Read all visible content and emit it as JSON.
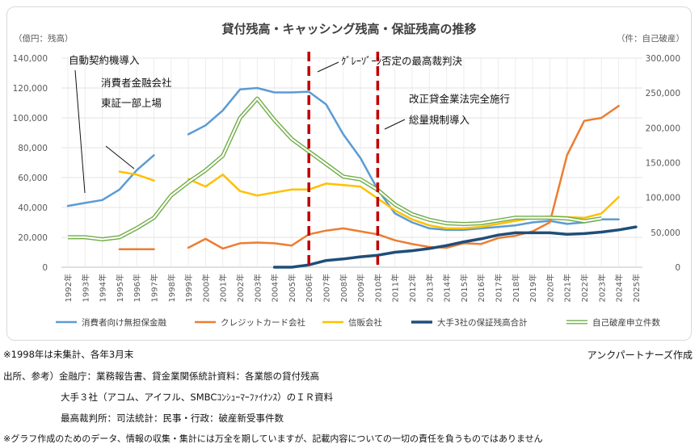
{
  "chart_data": {
    "type": "line",
    "title": "貸付残高・キャッシング残高・保証残高の推移",
    "left_unit": "（億円：残高）",
    "right_unit": "（件：自己破産）",
    "x": [
      "1992年",
      "1993年",
      "1994年",
      "1995年",
      "1996年",
      "1997年",
      "1998年",
      "1999年",
      "2000年",
      "2001年",
      "2002年",
      "2003年",
      "2004年",
      "2005年",
      "2006年",
      "2007年",
      "2008年",
      "2009年",
      "2010年",
      "2011年",
      "2012年",
      "2013年",
      "2014年",
      "2015年",
      "2016年",
      "2017年",
      "2018年",
      "2019年",
      "2020年",
      "2021年",
      "2022年",
      "2023年",
      "2024年",
      "2025年"
    ],
    "left_axis": {
      "min": 0,
      "max": 140000,
      "ticks": [
        "0",
        "20,000",
        "40,000",
        "60,000",
        "80,000",
        "100,000",
        "120,000",
        "140,000"
      ]
    },
    "right_axis": {
      "min": 0,
      "max": 300000,
      "ticks": [
        "0",
        "50,000",
        "100,000",
        "150,000",
        "200,000",
        "250,000",
        "300,000"
      ]
    },
    "grid": true,
    "legend_position": "bottom",
    "series": [
      {
        "name": "消費者向け無担保金融",
        "color": "#5b9bd5",
        "axis": "left",
        "style": "solid",
        "values": [
          41000,
          43000,
          45000,
          52000,
          65000,
          75000,
          null,
          89000,
          95000,
          105000,
          119000,
          120000,
          117000,
          117000,
          117500,
          109000,
          89000,
          73000,
          52000,
          36000,
          30000,
          26000,
          25000,
          25000,
          26000,
          27000,
          28000,
          30000,
          31000,
          29000,
          30000,
          32000,
          32000,
          null
        ]
      },
      {
        "name": "クレジットカード会社",
        "color": "#ed7d31",
        "axis": "left",
        "style": "solid",
        "values": [
          null,
          null,
          null,
          12000,
          12000,
          12000,
          null,
          13000,
          19000,
          12500,
          16000,
          16500,
          16000,
          14500,
          22000,
          24500,
          26000,
          24000,
          22000,
          18000,
          15500,
          13500,
          13000,
          16000,
          15500,
          19500,
          21000,
          24000,
          30000,
          75000,
          98000,
          100000,
          108000,
          null
        ]
      },
      {
        "name": "信販会社",
        "color": "#ffc000",
        "axis": "left",
        "style": "solid",
        "values": [
          null,
          null,
          null,
          64000,
          62000,
          58000,
          null,
          59000,
          54000,
          62000,
          51000,
          48000,
          50000,
          52000,
          52000,
          56000,
          55000,
          54000,
          46000,
          38000,
          32000,
          28000,
          26000,
          26000,
          27000,
          29000,
          31000,
          33000,
          34000,
          33500,
          33000,
          36000,
          47000,
          null
        ]
      },
      {
        "name": "大手3社の保証残高合計",
        "color": "#1f4e79",
        "axis": "left",
        "style": "solid",
        "values": [
          null,
          null,
          null,
          null,
          null,
          null,
          null,
          null,
          null,
          null,
          null,
          null,
          0,
          0,
          1500,
          4500,
          5500,
          7000,
          8000,
          10000,
          11000,
          12500,
          14500,
          17000,
          19000,
          21500,
          23000,
          23000,
          23000,
          22000,
          22500,
          23500,
          25000,
          27000
        ]
      },
      {
        "name": "自己破産申立件数",
        "color": "#70ad47",
        "axis": "right",
        "style": "double",
        "values": [
          43000,
          43000,
          40000,
          43000,
          56000,
          71000,
          103000,
          122000,
          139000,
          160000,
          214000,
          242000,
          211000,
          184000,
          166000,
          148000,
          130000,
          126000,
          111000,
          90000,
          76000,
          68000,
          63000,
          62000,
          63000,
          67000,
          71000,
          71000,
          71000,
          70000,
          66000,
          70000,
          null,
          null
        ]
      }
    ],
    "annotations": [
      {
        "text": "自動契約機導入"
      },
      {
        "text": "消費者金融会社"
      },
      {
        "text": "東証一部上場"
      },
      {
        "text": "ｸﾞﾚｰｿﾞｰﾝ否定の最高裁判決"
      },
      {
        "text": "改正貸金業法完全施行"
      },
      {
        "text": "総量規制導入"
      }
    ]
  },
  "notes": {
    "note1": "※1998年は未集計、各年3月末",
    "credit": "アンクパートナーズ作成",
    "src1": "出所、参考）金融庁：業務報告書、貸金業関係統計資料：各業態の貸付残高",
    "src2": "大手３社（アコム、アイフル、SMBCｺﾝｼｭｰﾏｰﾌｧｲﾅﾝｽ）のＩＲ資料",
    "src3": "最高裁判所：司法統計：民事・行政：破産新受事件数",
    "disclaimer": "※グラフ作成のためのデータ、情報の収集・集計には万全を期していますが、記載内容についての一切の責任を負うものではありません"
  }
}
